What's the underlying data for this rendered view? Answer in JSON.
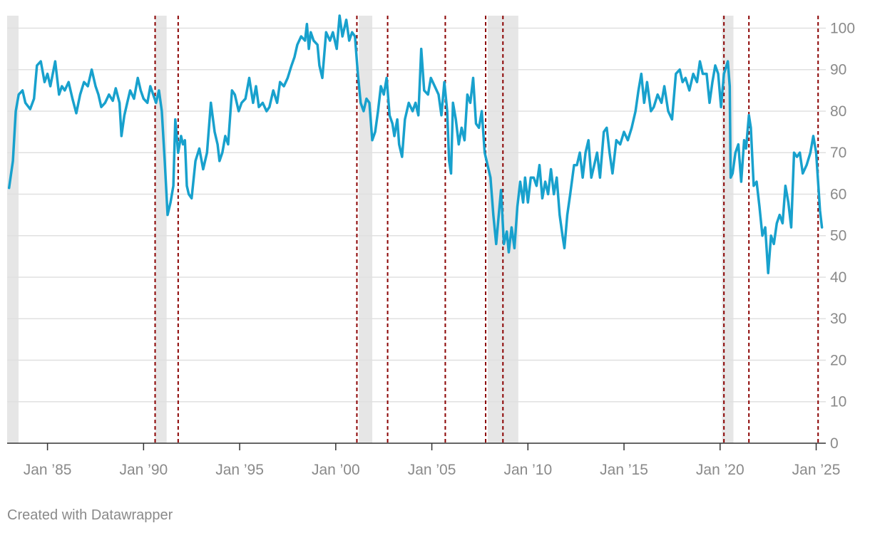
{
  "footer": {
    "credit": "Created with Datawrapper"
  },
  "colors": {
    "line": "#18a1cd",
    "recession_band": "#e6e6e6",
    "event_line": "#8b0000",
    "grid": "#e0e0e0",
    "axis": "#333333",
    "tick_text": "#8a8a8a"
  },
  "chart_data": {
    "type": "line",
    "title": "",
    "xlabel": "",
    "ylabel": "",
    "xlim": [
      1982.9,
      2025.5
    ],
    "ylim": [
      0,
      103
    ],
    "y_axis_side": "right",
    "grid": "horizontal",
    "y_ticks": [
      0,
      10,
      20,
      30,
      40,
      50,
      60,
      70,
      80,
      90,
      100
    ],
    "x_ticks": [
      {
        "x": 1985,
        "label": "Jan ’85"
      },
      {
        "x": 1990,
        "label": "Jan ’90"
      },
      {
        "x": 1995,
        "label": "Jan ’95"
      },
      {
        "x": 2000,
        "label": "Jan ’00"
      },
      {
        "x": 2005,
        "label": "Jan ’05"
      },
      {
        "x": 2010,
        "label": "Jan ’10"
      },
      {
        "x": 2015,
        "label": "Jan ’15"
      },
      {
        "x": 2020,
        "label": "Jan ’20"
      },
      {
        "x": 2025,
        "label": "Jan ’25"
      }
    ],
    "recession_bands": [
      [
        1982.9,
        1982.9
      ],
      [
        1990.6,
        1991.2
      ],
      [
        2001.2,
        2001.9
      ],
      [
        2007.9,
        2009.5
      ],
      [
        2020.1,
        2020.3
      ]
    ],
    "event_lines": [
      1990.6,
      1991.8,
      2001.1,
      2002.7,
      2005.7,
      2007.8,
      2008.7,
      2020.2,
      2021.5,
      2025.1
    ],
    "series": [
      {
        "values": [
          [
            1983.0,
            61.5
          ],
          [
            1983.2,
            68
          ],
          [
            1983.35,
            80
          ],
          [
            1983.5,
            84
          ],
          [
            1983.7,
            85
          ],
          [
            1983.85,
            82
          ],
          [
            1984.1,
            80.5
          ],
          [
            1984.3,
            83
          ],
          [
            1984.45,
            91
          ],
          [
            1984.65,
            92
          ],
          [
            1984.85,
            87
          ],
          [
            1985.0,
            89
          ],
          [
            1985.15,
            86
          ],
          [
            1985.4,
            92
          ],
          [
            1985.6,
            84
          ],
          [
            1985.75,
            86
          ],
          [
            1985.9,
            85
          ],
          [
            1986.1,
            87
          ],
          [
            1986.3,
            83
          ],
          [
            1986.5,
            79.5
          ],
          [
            1986.7,
            84
          ],
          [
            1986.9,
            87
          ],
          [
            1987.1,
            86
          ],
          [
            1987.3,
            90
          ],
          [
            1987.5,
            86
          ],
          [
            1987.65,
            84
          ],
          [
            1987.8,
            81
          ],
          [
            1988.0,
            82
          ],
          [
            1988.2,
            84
          ],
          [
            1988.4,
            82.5
          ],
          [
            1988.55,
            85.5
          ],
          [
            1988.75,
            82
          ],
          [
            1988.85,
            74
          ],
          [
            1989.0,
            79
          ],
          [
            1989.15,
            82
          ],
          [
            1989.3,
            85
          ],
          [
            1989.5,
            83
          ],
          [
            1989.7,
            88
          ],
          [
            1989.85,
            85
          ],
          [
            1990.0,
            83
          ],
          [
            1990.2,
            82
          ],
          [
            1990.35,
            86
          ],
          [
            1990.5,
            84
          ],
          [
            1990.65,
            82
          ],
          [
            1990.8,
            85
          ],
          [
            1990.95,
            80
          ],
          [
            1991.1,
            68
          ],
          [
            1991.25,
            55
          ],
          [
            1991.4,
            58
          ],
          [
            1991.55,
            62
          ],
          [
            1991.65,
            78
          ],
          [
            1991.8,
            70
          ],
          [
            1991.95,
            74
          ],
          [
            1992.05,
            72
          ],
          [
            1992.15,
            73
          ],
          [
            1992.25,
            62
          ],
          [
            1992.35,
            60
          ],
          [
            1992.5,
            59
          ],
          [
            1992.7,
            68
          ],
          [
            1992.9,
            71
          ],
          [
            1993.1,
            66
          ],
          [
            1993.3,
            70
          ],
          [
            1993.5,
            82
          ],
          [
            1993.7,
            75
          ],
          [
            1993.85,
            72
          ],
          [
            1993.95,
            68
          ],
          [
            1994.1,
            70
          ],
          [
            1994.25,
            74
          ],
          [
            1994.4,
            72
          ],
          [
            1994.6,
            85
          ],
          [
            1994.75,
            84
          ],
          [
            1994.95,
            80
          ],
          [
            1995.1,
            82
          ],
          [
            1995.3,
            83
          ],
          [
            1995.5,
            88
          ],
          [
            1995.7,
            82
          ],
          [
            1995.85,
            86
          ],
          [
            1996.0,
            81
          ],
          [
            1996.2,
            82
          ],
          [
            1996.4,
            80
          ],
          [
            1996.55,
            81
          ],
          [
            1996.75,
            85
          ],
          [
            1996.95,
            82
          ],
          [
            1997.1,
            87
          ],
          [
            1997.3,
            86
          ],
          [
            1997.5,
            88
          ],
          [
            1997.7,
            91
          ],
          [
            1997.85,
            93
          ],
          [
            1998.0,
            96
          ],
          [
            1998.2,
            98
          ],
          [
            1998.4,
            97
          ],
          [
            1998.5,
            101
          ],
          [
            1998.6,
            95
          ],
          [
            1998.7,
            99
          ],
          [
            1998.85,
            97
          ],
          [
            1999.05,
            96
          ],
          [
            1999.15,
            91
          ],
          [
            1999.3,
            88
          ],
          [
            1999.5,
            99
          ],
          [
            1999.7,
            97
          ],
          [
            1999.85,
            99
          ],
          [
            2000.05,
            95
          ],
          [
            2000.2,
            103
          ],
          [
            2000.35,
            98
          ],
          [
            2000.55,
            102
          ],
          [
            2000.7,
            97
          ],
          [
            2000.85,
            99
          ],
          [
            2001.0,
            98
          ],
          [
            2001.15,
            89
          ],
          [
            2001.3,
            82
          ],
          [
            2001.45,
            80
          ],
          [
            2001.6,
            83
          ],
          [
            2001.75,
            82
          ],
          [
            2001.9,
            73
          ],
          [
            2002.05,
            75
          ],
          [
            2002.2,
            80
          ],
          [
            2002.35,
            86
          ],
          [
            2002.5,
            84
          ],
          [
            2002.65,
            88
          ],
          [
            2002.8,
            79
          ],
          [
            2002.95,
            77
          ],
          [
            2003.05,
            74
          ],
          [
            2003.2,
            78
          ],
          [
            2003.3,
            72
          ],
          [
            2003.45,
            69
          ],
          [
            2003.6,
            78
          ],
          [
            2003.8,
            82
          ],
          [
            2004.0,
            80
          ],
          [
            2004.15,
            82
          ],
          [
            2004.3,
            79
          ],
          [
            2004.45,
            95
          ],
          [
            2004.6,
            85
          ],
          [
            2004.8,
            84
          ],
          [
            2004.95,
            88
          ],
          [
            2005.15,
            86
          ],
          [
            2005.35,
            84
          ],
          [
            2005.5,
            79
          ],
          [
            2005.65,
            87
          ],
          [
            2005.8,
            80
          ],
          [
            2005.9,
            68
          ],
          [
            2006.0,
            65
          ],
          [
            2006.1,
            82
          ],
          [
            2006.25,
            78
          ],
          [
            2006.4,
            72
          ],
          [
            2006.55,
            76
          ],
          [
            2006.7,
            73
          ],
          [
            2006.85,
            84
          ],
          [
            2007.0,
            82
          ],
          [
            2007.15,
            88
          ],
          [
            2007.3,
            77
          ],
          [
            2007.45,
            76
          ],
          [
            2007.6,
            80
          ],
          [
            2007.75,
            70
          ],
          [
            2007.9,
            67
          ],
          [
            2008.05,
            64
          ],
          [
            2008.2,
            55
          ],
          [
            2008.35,
            48
          ],
          [
            2008.5,
            56
          ],
          [
            2008.6,
            61
          ],
          [
            2008.75,
            48
          ],
          [
            2008.9,
            51
          ],
          [
            2009.0,
            46
          ],
          [
            2009.15,
            52
          ],
          [
            2009.3,
            47
          ],
          [
            2009.45,
            57
          ],
          [
            2009.6,
            63
          ],
          [
            2009.75,
            58
          ],
          [
            2009.85,
            64
          ],
          [
            2010.0,
            58
          ],
          [
            2010.15,
            64
          ],
          [
            2010.3,
            64
          ],
          [
            2010.45,
            62
          ],
          [
            2010.6,
            67
          ],
          [
            2010.75,
            59
          ],
          [
            2010.9,
            63
          ],
          [
            2011.05,
            60
          ],
          [
            2011.2,
            66
          ],
          [
            2011.35,
            60
          ],
          [
            2011.5,
            64
          ],
          [
            2011.65,
            55
          ],
          [
            2011.8,
            50
          ],
          [
            2011.9,
            47
          ],
          [
            2012.05,
            55
          ],
          [
            2012.2,
            60
          ],
          [
            2012.4,
            67
          ],
          [
            2012.55,
            67
          ],
          [
            2012.7,
            70
          ],
          [
            2012.85,
            64
          ],
          [
            2013.0,
            70
          ],
          [
            2013.15,
            73
          ],
          [
            2013.3,
            64
          ],
          [
            2013.45,
            67
          ],
          [
            2013.6,
            70
          ],
          [
            2013.75,
            64
          ],
          [
            2013.95,
            75
          ],
          [
            2014.1,
            76
          ],
          [
            2014.25,
            70
          ],
          [
            2014.4,
            65
          ],
          [
            2014.6,
            73
          ],
          [
            2014.8,
            72
          ],
          [
            2015.0,
            75
          ],
          [
            2015.2,
            73
          ],
          [
            2015.4,
            76
          ],
          [
            2015.6,
            80
          ],
          [
            2015.75,
            85
          ],
          [
            2015.9,
            89
          ],
          [
            2016.05,
            82
          ],
          [
            2016.2,
            87
          ],
          [
            2016.4,
            80
          ],
          [
            2016.55,
            81
          ],
          [
            2016.75,
            84
          ],
          [
            2016.95,
            82
          ],
          [
            2017.1,
            86
          ],
          [
            2017.3,
            80
          ],
          [
            2017.5,
            78
          ],
          [
            2017.7,
            89
          ],
          [
            2017.9,
            90
          ],
          [
            2018.05,
            87
          ],
          [
            2018.2,
            88
          ],
          [
            2018.4,
            85
          ],
          [
            2018.6,
            89
          ],
          [
            2018.8,
            87
          ],
          [
            2018.95,
            92
          ],
          [
            2019.1,
            89
          ],
          [
            2019.3,
            89
          ],
          [
            2019.45,
            82
          ],
          [
            2019.6,
            87
          ],
          [
            2019.75,
            91
          ],
          [
            2019.9,
            89
          ],
          [
            2020.05,
            81
          ],
          [
            2020.2,
            89
          ],
          [
            2020.4,
            92
          ],
          [
            2020.5,
            86
          ],
          [
            2020.55,
            64
          ],
          [
            2020.65,
            65
          ],
          [
            2020.8,
            70
          ],
          [
            2020.95,
            72
          ],
          [
            2021.1,
            63
          ],
          [
            2021.25,
            73
          ],
          [
            2021.35,
            71
          ],
          [
            2021.5,
            79
          ],
          [
            2021.6,
            76
          ],
          [
            2021.75,
            62
          ],
          [
            2021.9,
            63
          ],
          [
            2022.05,
            57
          ],
          [
            2022.2,
            50
          ],
          [
            2022.35,
            52
          ],
          [
            2022.5,
            41
          ],
          [
            2022.65,
            50
          ],
          [
            2022.8,
            48
          ],
          [
            2022.95,
            53
          ],
          [
            2023.1,
            55
          ],
          [
            2023.25,
            53
          ],
          [
            2023.4,
            62
          ],
          [
            2023.55,
            58
          ],
          [
            2023.7,
            52
          ],
          [
            2023.85,
            70
          ],
          [
            2024.0,
            69
          ],
          [
            2024.15,
            70
          ],
          [
            2024.3,
            65
          ],
          [
            2024.5,
            67
          ],
          [
            2024.7,
            70
          ],
          [
            2024.85,
            74
          ],
          [
            2025.0,
            70
          ],
          [
            2025.1,
            63
          ],
          [
            2025.2,
            56
          ],
          [
            2025.3,
            52
          ]
        ]
      }
    ]
  }
}
